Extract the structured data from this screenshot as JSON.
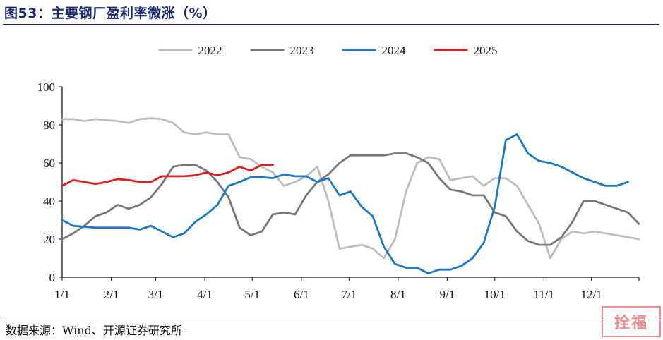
{
  "figure": {
    "title": "图53：主要钢厂盈利率微涨（%）",
    "source": "数据来源：Wind、开源证券研究所"
  },
  "chart_data": {
    "type": "line",
    "title": "主要钢厂盈利率微涨（%）",
    "xlabel": "",
    "ylabel": "",
    "ylim": [
      0,
      100
    ],
    "yticks": [
      0,
      20,
      40,
      60,
      80,
      100
    ],
    "xlim": [
      0,
      52
    ],
    "xticks": [
      {
        "label": "1/1",
        "week": 0
      },
      {
        "label": "2/1",
        "week": 4.43
      },
      {
        "label": "3/1",
        "week": 8.43
      },
      {
        "label": "4/1",
        "week": 12.86
      },
      {
        "label": "5/1",
        "week": 17.14
      },
      {
        "label": "6/1",
        "week": 21.57
      },
      {
        "label": "7/1",
        "week": 25.86
      },
      {
        "label": "8/1",
        "week": 30.29
      },
      {
        "label": "9/1",
        "week": 34.71
      },
      {
        "label": "10/1",
        "week": 39.0
      },
      {
        "label": "11/1",
        "week": 43.43
      },
      {
        "label": "12/1",
        "week": 47.71
      }
    ],
    "legend_position": "top",
    "grid": false,
    "series": [
      {
        "name": "2022",
        "color": "#bdbdbd",
        "values": [
          83,
          83,
          82,
          83,
          82.5,
          82,
          81,
          83,
          83.5,
          83,
          81,
          76,
          75,
          76,
          75,
          75,
          63,
          62,
          58,
          55,
          48,
          50,
          53,
          58,
          40,
          15,
          16,
          17,
          15,
          10,
          20,
          45,
          60,
          63,
          62,
          51,
          52,
          53,
          48,
          52,
          52,
          48,
          38,
          28,
          10,
          20,
          24,
          23,
          24,
          23,
          22,
          21,
          20
        ]
      },
      {
        "name": "2023",
        "color": "#777777",
        "values": [
          20,
          23,
          27,
          32,
          34,
          38,
          36,
          38,
          42,
          49,
          58,
          59,
          59,
          56,
          50,
          42,
          26,
          22,
          24,
          33,
          34,
          33,
          43,
          50,
          54,
          60,
          64,
          64,
          64,
          64,
          65,
          65,
          63,
          60,
          52,
          46,
          45,
          43,
          43,
          34,
          32,
          24,
          19,
          17,
          17,
          21,
          29,
          40,
          40,
          38,
          36,
          34,
          28
        ]
      },
      {
        "name": "2024",
        "color": "#1f78c1",
        "values": [
          30,
          27,
          26.5,
          26,
          26,
          26,
          26,
          25,
          27,
          24,
          21,
          23,
          29,
          33,
          38,
          48,
          50,
          52.5,
          52.5,
          52,
          54,
          53,
          53,
          50,
          52,
          43,
          45,
          37,
          32,
          16,
          7,
          5,
          5,
          2,
          4,
          4,
          6,
          10,
          18,
          37,
          72,
          75,
          65,
          61,
          60,
          58,
          55,
          52,
          50,
          48,
          48,
          50
        ]
      },
      {
        "name": "2025",
        "color": "#e02020",
        "values": [
          48,
          51,
          50,
          49,
          50,
          51.5,
          51,
          50,
          50,
          53,
          53,
          53,
          53.5,
          55,
          53.5,
          55,
          58,
          56,
          59,
          59
        ]
      }
    ]
  }
}
